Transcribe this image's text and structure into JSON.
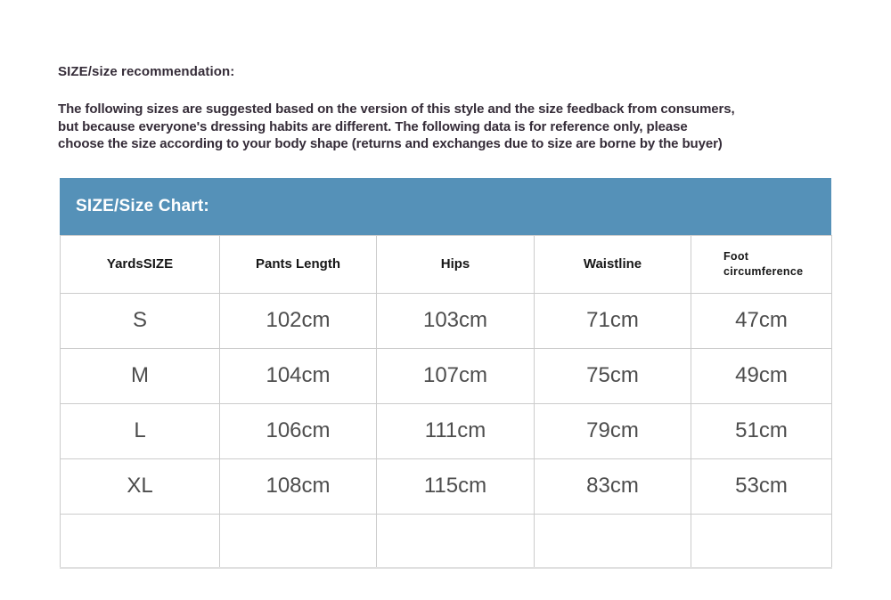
{
  "page": {
    "heading": "SIZE/size recommendation:",
    "description_lines": [
      "The following sizes are suggested based on the version of this style and the size feedback from consumers,",
      "but because everyone's dressing habits are different. The following data is for reference only, please",
      "choose the size according to your body shape (returns and exchanges due to size are borne by the buyer)"
    ],
    "text_color": "#352c38",
    "background_color": "#ffffff"
  },
  "size_chart": {
    "banner_title": "SIZE/Size Chart:",
    "banner_color": "#5591b8",
    "banner_text_color": "#ffffff",
    "border_color": "#cccccc",
    "data_text_color": "#4d4d4d",
    "columns": [
      "YardsSIZE",
      "Pants Length",
      "Hips",
      "Waistline",
      "Foot circumference"
    ],
    "rows": [
      [
        "S",
        "102cm",
        "103cm",
        "71cm",
        "47cm"
      ],
      [
        "M",
        "104cm",
        "107cm",
        "75cm",
        "49cm"
      ],
      [
        "L",
        "106cm",
        "111cm",
        "79cm",
        "51cm"
      ],
      [
        "XL",
        "108cm",
        "115cm",
        "83cm",
        "53cm"
      ]
    ]
  }
}
